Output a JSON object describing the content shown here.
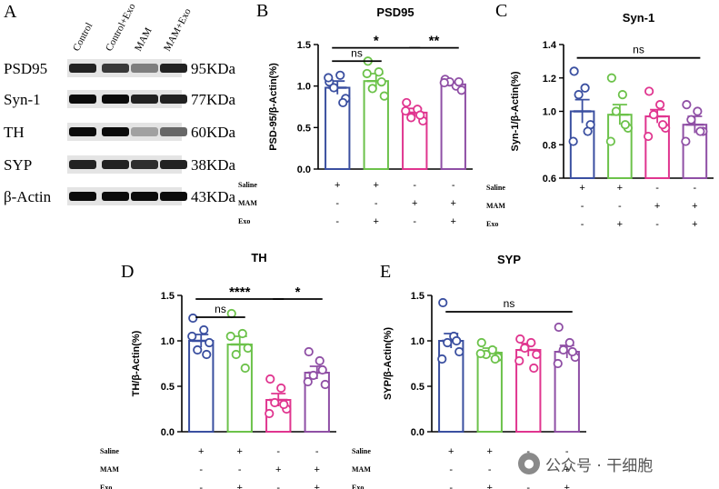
{
  "western_blot": {
    "panel_letter": "A",
    "lane_labels": [
      "Control",
      "Control+Exo",
      "MAM",
      "MAM+Exo"
    ],
    "proteins": [
      {
        "name": "PSD95",
        "size": "95KDa",
        "intensities": [
          0.85,
          0.75,
          0.45,
          0.85
        ]
      },
      {
        "name": "Syn-1",
        "size": "77KDa",
        "intensities": [
          0.95,
          0.95,
          0.85,
          0.85
        ]
      },
      {
        "name": "TH",
        "size": "60KDa",
        "intensities": [
          0.95,
          0.95,
          0.3,
          0.55
        ]
      },
      {
        "name": "SYP",
        "size": "38KDa",
        "intensities": [
          0.85,
          0.85,
          0.8,
          0.85
        ]
      },
      {
        "name": "β-Actin",
        "size": "43KDa",
        "intensities": [
          0.95,
          0.95,
          0.95,
          0.95
        ]
      }
    ]
  },
  "treatment_table": {
    "rows": [
      {
        "label": "Saline",
        "values": [
          "+",
          "+",
          "-",
          "-"
        ]
      },
      {
        "label": "MAM",
        "values": [
          "-",
          "-",
          "+",
          "+"
        ]
      },
      {
        "label": "Exo",
        "values": [
          "-",
          "+",
          "-",
          "+"
        ]
      }
    ]
  },
  "colors": {
    "blue": "#3a4fa0",
    "green": "#6cc24a",
    "pink": "#e0358f",
    "purple": "#8f4fa5"
  },
  "chart_data": [
    {
      "panel": "B",
      "type": "bar",
      "title": "PSD95",
      "ylabel": "PSD-95/β-Actin(%)",
      "ylim": [
        0,
        1.5
      ],
      "yticks": [
        "0.0",
        "0.5",
        "1.0",
        "1.5"
      ],
      "categories": [
        "Saline",
        "Saline+Exo",
        "MAM",
        "MAM+Exo"
      ],
      "values": [
        0.98,
        1.06,
        0.68,
        1.02
      ],
      "errors": [
        0.08,
        0.09,
        0.05,
        0.03
      ],
      "points": [
        [
          1.05,
          1.13,
          0.98,
          0.85,
          1.1,
          0.8
        ],
        [
          1.3,
          1.17,
          0.97,
          0.88,
          1.15,
          1.05
        ],
        [
          0.8,
          0.72,
          0.62,
          0.58,
          0.7,
          0.65
        ],
        [
          1.08,
          1.0,
          1.05,
          0.95,
          1.04,
          1.05
        ]
      ],
      "annotations": [
        {
          "from": 0,
          "to": 2,
          "label": "*",
          "y": 1.46
        },
        {
          "from": 2,
          "to": 3,
          "label": "**",
          "y": 1.46
        },
        {
          "from": 0,
          "to": 1,
          "label": "ns",
          "y": 1.3
        }
      ]
    },
    {
      "panel": "C",
      "type": "bar",
      "title": "Syn-1",
      "ylabel": "Syn-1/β-Actin(%)",
      "ylim": [
        0.6,
        1.4
      ],
      "yticks": [
        "0.6",
        "0.8",
        "1.0",
        "1.2",
        "1.4"
      ],
      "categories": [
        "Saline",
        "Saline+Exo",
        "MAM",
        "MAM+Exo"
      ],
      "values": [
        1.0,
        0.98,
        0.97,
        0.92
      ],
      "errors": [
        0.07,
        0.06,
        0.04,
        0.05
      ],
      "points": [
        [
          1.24,
          1.14,
          1.1,
          0.92,
          0.82,
          0.88
        ],
        [
          1.2,
          1.1,
          1.0,
          0.9,
          0.82,
          0.92
        ],
        [
          1.12,
          1.04,
          0.98,
          0.9,
          0.85,
          0.92
        ],
        [
          1.04,
          1.0,
          0.95,
          0.88,
          0.82,
          0.88
        ]
      ],
      "annotations": [
        {
          "from": 0,
          "to": 3,
          "label": "ns",
          "y": 1.32
        }
      ]
    },
    {
      "panel": "D",
      "type": "bar",
      "title": "TH",
      "ylabel": "TH/β-Actin(%)",
      "ylim": [
        0,
        1.5
      ],
      "yticks": [
        "0.0",
        "0.5",
        "1.0",
        "1.5"
      ],
      "categories": [
        "Saline",
        "Saline+Exo",
        "MAM",
        "MAM+Exo"
      ],
      "values": [
        1.0,
        0.96,
        0.35,
        0.65
      ],
      "errors": [
        0.07,
        0.09,
        0.07,
        0.07
      ],
      "points": [
        [
          1.25,
          1.12,
          0.9,
          0.98,
          1.05,
          0.85
        ],
        [
          1.3,
          1.08,
          0.85,
          0.92,
          1.05,
          0.7
        ],
        [
          0.58,
          0.48,
          0.32,
          0.25,
          0.2,
          0.3
        ],
        [
          0.88,
          0.78,
          0.62,
          0.52,
          0.55,
          0.68
        ]
      ],
      "annotations": [
        {
          "from": 0,
          "to": 2,
          "label": "****",
          "y": 1.46
        },
        {
          "from": 2,
          "to": 3,
          "label": "*",
          "y": 1.46
        },
        {
          "from": 0,
          "to": 1,
          "label": "ns",
          "y": 1.26
        }
      ]
    },
    {
      "panel": "E",
      "type": "bar",
      "title": "SYP",
      "ylabel": "SYP/β-Actin(%)",
      "ylim": [
        0,
        1.5
      ],
      "yticks": [
        "0.0",
        "0.5",
        "1.0",
        "1.5"
      ],
      "categories": [
        "Saline",
        "Saline+Exo",
        "MAM",
        "MAM+Exo"
      ],
      "values": [
        1.0,
        0.87,
        0.9,
        0.88
      ],
      "errors": [
        0.08,
        0.05,
        0.07,
        0.07
      ],
      "points": [
        [
          1.42,
          1.05,
          0.98,
          0.88,
          0.8,
          1.0
        ],
        [
          0.98,
          0.9,
          0.85,
          0.82,
          0.86,
          0.8
        ],
        [
          1.02,
          0.98,
          0.92,
          0.85,
          0.78,
          0.7
        ],
        [
          1.15,
          0.98,
          0.9,
          0.82,
          0.75,
          0.88
        ]
      ],
      "annotations": [
        {
          "from": 0,
          "to": 3,
          "label": "ns",
          "y": 1.32
        }
      ]
    }
  ],
  "watermark": {
    "text": "公众号 · 干细胞",
    "icon": "chat-bubble-icon"
  }
}
